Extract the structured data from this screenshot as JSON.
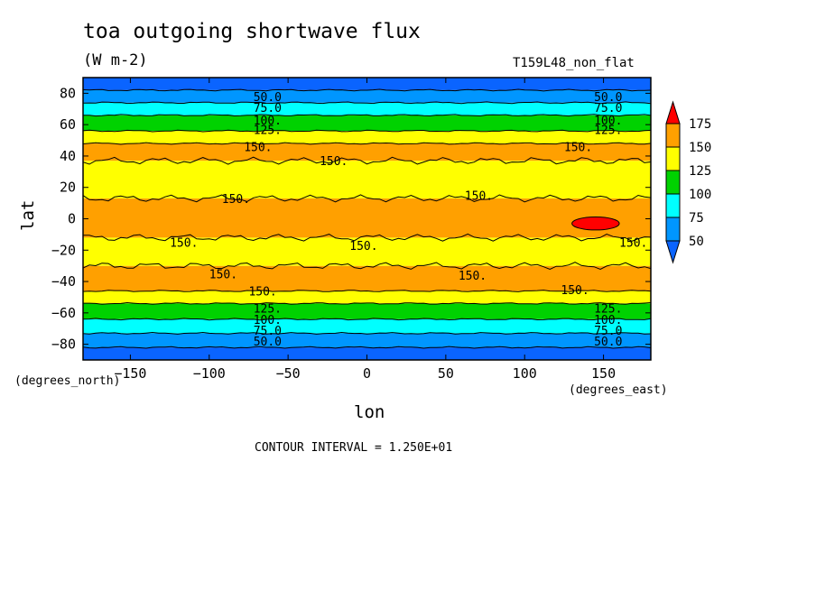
{
  "header": {
    "title": "toa outgoing shortwave flux",
    "units": "(W m-2)",
    "run_label": "T159L48_non_flat"
  },
  "axes": {
    "xlabel": "lon",
    "ylabel": "lat",
    "x_unit_note": "(degrees_east)",
    "y_unit_note": "(degrees_north)"
  },
  "footer": {
    "contour_interval": "CONTOUR INTERVAL = 1.250E+01"
  },
  "chart_data": {
    "type": "heatmap",
    "title": "toa outgoing shortwave flux",
    "subtitle": "(W m-2)",
    "xlabel": "lon",
    "ylabel": "lat",
    "xlim": [
      -180,
      180
    ],
    "ylim": [
      -90,
      90
    ],
    "x_ticks": [
      -150,
      -100,
      -50,
      0,
      50,
      100,
      150
    ],
    "x_tick_labels": [
      "-150",
      "-100",
      "-50",
      "0",
      "50",
      "100",
      "150"
    ],
    "y_ticks": [
      -80,
      -60,
      -40,
      -20,
      0,
      20,
      40,
      60,
      80
    ],
    "y_tick_labels": [
      "-80",
      "-60",
      "-40",
      "-20",
      "0",
      "20",
      "40",
      "60",
      "80"
    ],
    "colorbar": {
      "levels": [
        50,
        75,
        100,
        125,
        150,
        175
      ],
      "labels": [
        "50",
        "75",
        "100",
        "125",
        "150",
        "175"
      ],
      "colors": [
        "#0a64ff",
        "#0096ff",
        "#00ffff",
        "#00d200",
        "#ffff00",
        "#ffa000",
        "#ff0000"
      ]
    },
    "bands": [
      {
        "lat_min": -90,
        "lat_max": -82,
        "value_range": "<50",
        "color": "#0a64ff"
      },
      {
        "lat_min": -82,
        "lat_max": -73,
        "value_range": "50-75",
        "color": "#0096ff"
      },
      {
        "lat_min": -73,
        "lat_max": -64,
        "value_range": "75-100",
        "color": "#00ffff"
      },
      {
        "lat_min": -64,
        "lat_max": -54,
        "value_range": "100-125",
        "color": "#00d200"
      },
      {
        "lat_min": -54,
        "lat_max": -46,
        "value_range": "125-150",
        "color": "#ffff00"
      },
      {
        "lat_min": -46,
        "lat_max": -30,
        "value_range": "150-175",
        "color": "#ffa000"
      },
      {
        "lat_min": -30,
        "lat_max": -12,
        "value_range": "125-150",
        "color": "#ffff00"
      },
      {
        "lat_min": -12,
        "lat_max": 13,
        "value_range": "150-175",
        "color": "#ffa000"
      },
      {
        "lat_min": 13,
        "lat_max": 37,
        "value_range": "125-150",
        "color": "#ffff00"
      },
      {
        "lat_min": 37,
        "lat_max": 48,
        "value_range": "150-175",
        "color": "#ffa000"
      },
      {
        "lat_min": 48,
        "lat_max": 56,
        "value_range": "125-150",
        "color": "#ffff00"
      },
      {
        "lat_min": 56,
        "lat_max": 66,
        "value_range": "100-125",
        "color": "#00d200"
      },
      {
        "lat_min": 66,
        "lat_max": 74,
        "value_range": "75-100",
        "color": "#00ffff"
      },
      {
        "lat_min": 74,
        "lat_max": 82,
        "value_range": "50-75",
        "color": "#0096ff"
      },
      {
        "lat_min": 82,
        "lat_max": 90,
        "value_range": "<50",
        "color": "#0a64ff"
      }
    ],
    "red_patch": {
      "lon": [
        130,
        160
      ],
      "lat": [
        -6,
        0
      ],
      "value_range": ">175",
      "color": "#ff0000"
    },
    "contour_labels": [
      {
        "text": "50.0",
        "lon": -72,
        "lat": 78
      },
      {
        "text": "75.0",
        "lon": -72,
        "lat": 71
      },
      {
        "text": "100.",
        "lon": -72,
        "lat": 63
      },
      {
        "text": "125.",
        "lon": -72,
        "lat": 57
      },
      {
        "text": "150.",
        "lon": -78,
        "lat": 46
      },
      {
        "text": "150.",
        "lon": -30,
        "lat": 37
      },
      {
        "text": "150.",
        "lon": -92,
        "lat": 13
      },
      {
        "text": "150.",
        "lon": 62,
        "lat": 15
      },
      {
        "text": "150.",
        "lon": -125,
        "lat": -15
      },
      {
        "text": "150.",
        "lon": -11,
        "lat": -17
      },
      {
        "text": "150.",
        "lon": -100,
        "lat": -35
      },
      {
        "text": "150.",
        "lon": 58,
        "lat": -36
      },
      {
        "text": "150.",
        "lon": -75,
        "lat": -46
      },
      {
        "text": "150.",
        "lon": 123,
        "lat": -45
      },
      {
        "text": "150.",
        "lon": 125,
        "lat": 46
      },
      {
        "text": "150.",
        "lon": 160,
        "lat": -15
      },
      {
        "text": "125.",
        "lon": -72,
        "lat": -57
      },
      {
        "text": "100.",
        "lon": -72,
        "lat": -64
      },
      {
        "text": "75.0",
        "lon": -72,
        "lat": -71
      },
      {
        "text": "50.0",
        "lon": -72,
        "lat": -78
      },
      {
        "text": "50.0",
        "lon": 144,
        "lat": 78
      },
      {
        "text": "75.0",
        "lon": 144,
        "lat": 71
      },
      {
        "text": "100.",
        "lon": 144,
        "lat": 63
      },
      {
        "text": "125.",
        "lon": 144,
        "lat": 57
      },
      {
        "text": "125.",
        "lon": 144,
        "lat": -57
      },
      {
        "text": "100.",
        "lon": 144,
        "lat": -64
      },
      {
        "text": "75.0",
        "lon": 144,
        "lat": -71
      },
      {
        "text": "50.0",
        "lon": 144,
        "lat": -78
      }
    ]
  }
}
